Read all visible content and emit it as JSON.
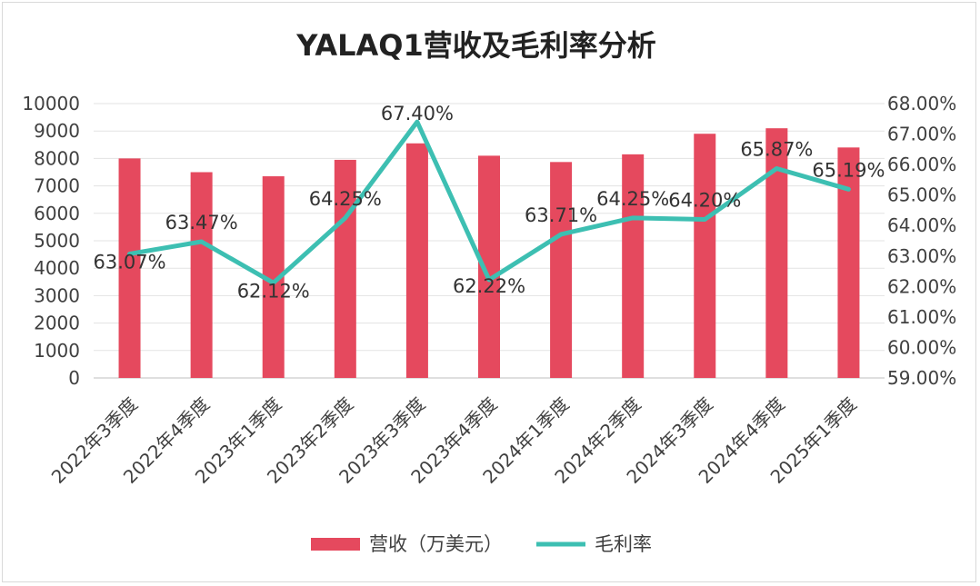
{
  "chart_data": {
    "type": "bar",
    "title": "YALAQ1营收及毛利率分析",
    "categories": [
      "2022年3季度",
      "2022年4季度",
      "2023年1季度",
      "2023年2季度",
      "2023年3季度",
      "2023年4季度",
      "2024年1季度",
      "2024年2季度",
      "2024年3季度",
      "2024年4季度",
      "2025年1季度"
    ],
    "series": [
      {
        "name": "营收（万美元）",
        "type": "bar",
        "axis": "left",
        "color": "#e5495e",
        "values": [
          8000,
          7500,
          7350,
          7950,
          8550,
          8100,
          7870,
          8150,
          8900,
          9100,
          8400
        ]
      },
      {
        "name": "毛利率",
        "type": "line",
        "axis": "right",
        "color": "#3dbfb2",
        "values": [
          63.07,
          63.47,
          62.12,
          64.25,
          67.4,
          62.22,
          63.71,
          64.25,
          64.2,
          65.87,
          65.19
        ],
        "labels": [
          "63.07%",
          "63.47%",
          "62.12%",
          "64.25%",
          "67.40%",
          "62.22%",
          "63.71%",
          "64.25%",
          "64.20%",
          "65.87%",
          "65.19%"
        ]
      }
    ],
    "y_left": {
      "min": 0,
      "max": 10000,
      "ticks": [
        "0",
        "1000",
        "2000",
        "3000",
        "4000",
        "5000",
        "6000",
        "7000",
        "8000",
        "9000",
        "10000"
      ]
    },
    "y_right": {
      "min": 59,
      "max": 68,
      "ticks": [
        "59.00%",
        "60.00%",
        "61.00%",
        "62.00%",
        "63.00%",
        "64.00%",
        "65.00%",
        "66.00%",
        "67.00%",
        "68.00%"
      ]
    },
    "grid": true,
    "legend_position": "bottom"
  }
}
